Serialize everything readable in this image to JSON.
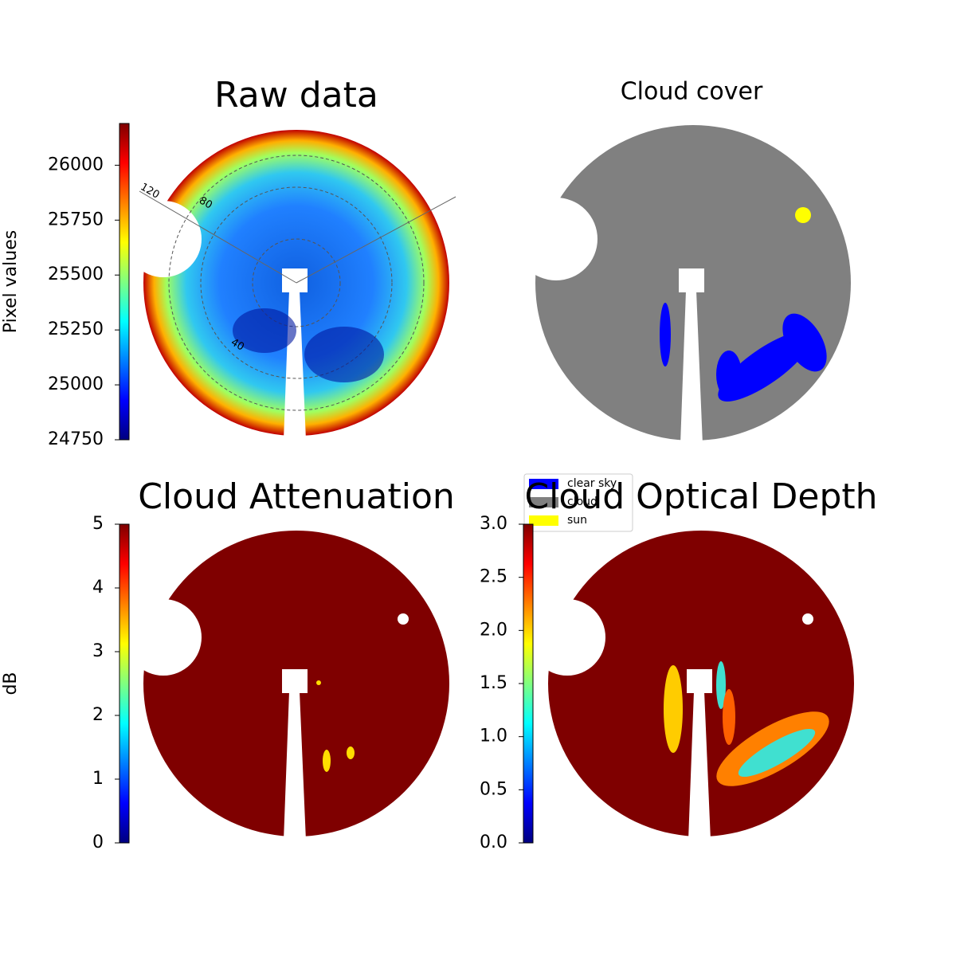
{
  "chart_data": [
    {
      "type": "image",
      "title": "Raw data",
      "ylabel": "Pixel values",
      "colormap": "jet",
      "ylim": [
        24750,
        26190
      ],
      "yticks": [
        24750,
        25000,
        25250,
        25500,
        25750,
        26000
      ],
      "annotations": [
        "120",
        "80",
        "40"
      ]
    },
    {
      "type": "image",
      "title": "Cloud cover",
      "series": [
        {
          "name": "clear sky",
          "color": "#0000ff"
        },
        {
          "name": "cloud",
          "color": "#808080"
        },
        {
          "name": "sun",
          "color": "#ffff00"
        }
      ]
    },
    {
      "type": "image",
      "title": "Cloud Attenuation",
      "ylabel": "dB",
      "colormap": "jet",
      "ylim": [
        0,
        5
      ],
      "yticks": [
        0,
        1,
        2,
        3,
        4,
        5
      ]
    },
    {
      "type": "image",
      "title": "Cloud Optical Depth",
      "colormap": "jet",
      "ylim": [
        0,
        3
      ],
      "yticks": [
        {
          "value": 0,
          "label": "0.0"
        },
        {
          "value": 0.5,
          "label": "0.5"
        },
        {
          "value": 1,
          "label": "1.0"
        },
        {
          "value": 1.5,
          "label": "1.5"
        },
        {
          "value": 2,
          "label": "2.0"
        },
        {
          "value": 2.5,
          "label": "2.5"
        },
        {
          "value": 3,
          "label": "3.0"
        }
      ]
    }
  ]
}
